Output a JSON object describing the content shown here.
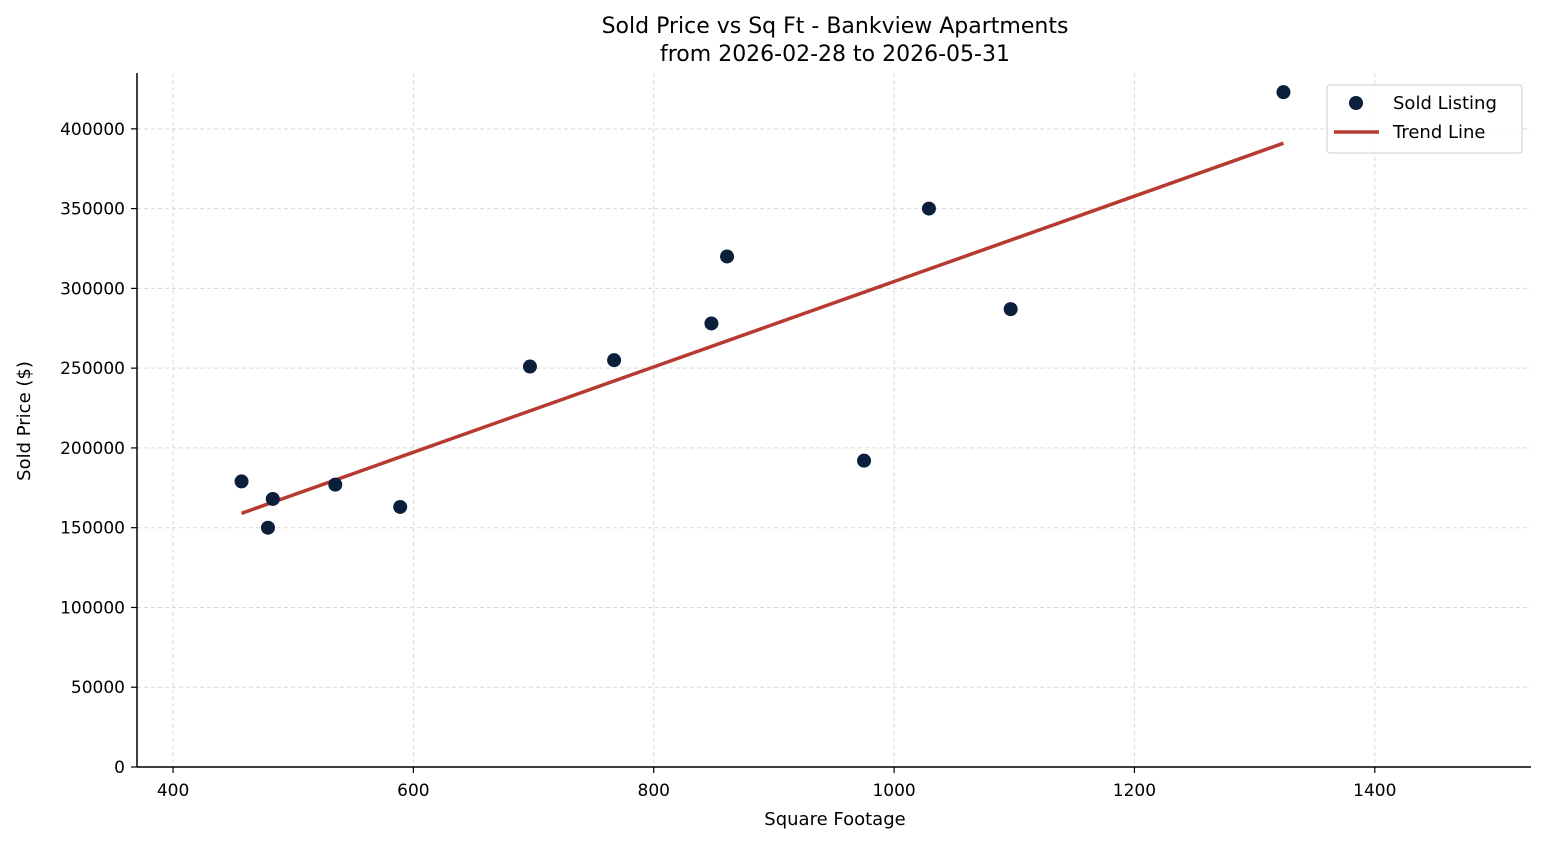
{
  "chart_data": {
    "type": "scatter",
    "title": "Sold Price vs Sq Ft - Bankview Apartments",
    "subtitle": "from 2026-02-28 to 2026-05-31",
    "xlabel": "Square Footage",
    "ylabel": "Sold Price ($)",
    "xlim": [
      370,
      1530
    ],
    "ylim": [
      0,
      435000
    ],
    "xticks": [
      400,
      600,
      800,
      1000,
      1200,
      1400
    ],
    "yticks": [
      0,
      50000,
      100000,
      150000,
      200000,
      250000,
      300000,
      350000,
      400000
    ],
    "grid": true,
    "legend_position": "top-right",
    "series": [
      {
        "name": "Sold Listing",
        "kind": "scatter",
        "color": "#0b1f3a",
        "points": [
          {
            "x": 457,
            "y": 179000
          },
          {
            "x": 479,
            "y": 150000
          },
          {
            "x": 483,
            "y": 168000
          },
          {
            "x": 535,
            "y": 177000
          },
          {
            "x": 589,
            "y": 163000
          },
          {
            "x": 697,
            "y": 251000
          },
          {
            "x": 767,
            "y": 255000
          },
          {
            "x": 848,
            "y": 278000
          },
          {
            "x": 861,
            "y": 320000
          },
          {
            "x": 975,
            "y": 192000
          },
          {
            "x": 1029,
            "y": 350000
          },
          {
            "x": 1097,
            "y": 287000
          },
          {
            "x": 1324,
            "y": 423000
          }
        ]
      },
      {
        "name": "Trend Line",
        "kind": "line",
        "color": "#b63a2f",
        "points": [
          {
            "x": 457,
            "y": 159000
          },
          {
            "x": 1324,
            "y": 391000
          }
        ]
      }
    ]
  }
}
